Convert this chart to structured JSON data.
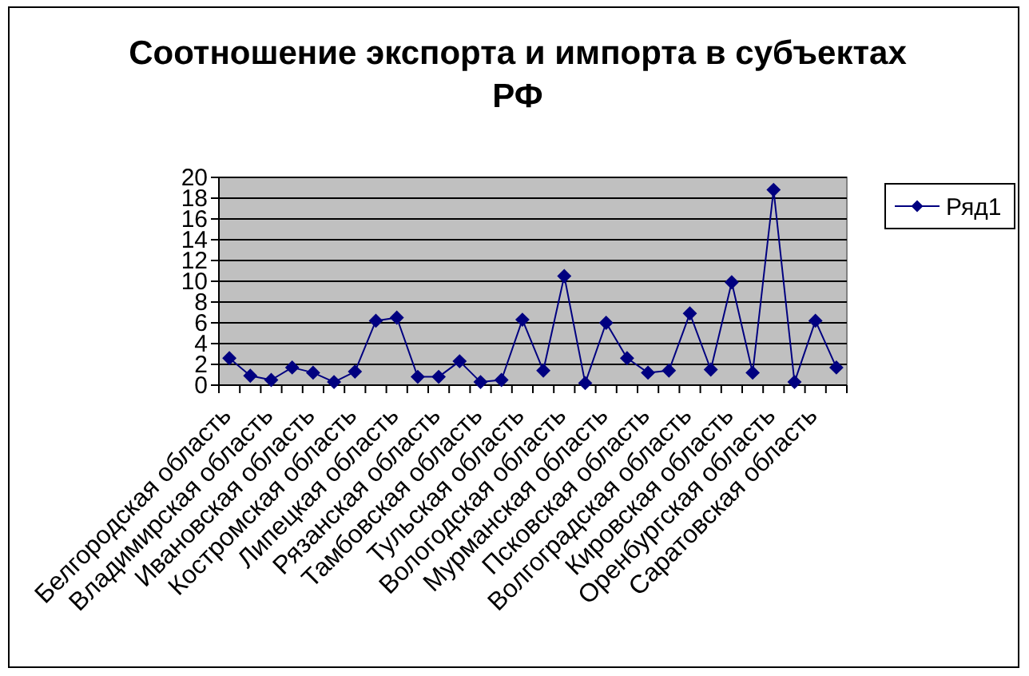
{
  "chart_data": {
    "type": "line",
    "title": "Соотношение экспорта и импорта в субъектах РФ",
    "categories": [
      "Белгородская область",
      null,
      "Владимирская область",
      null,
      "Ивановская область",
      null,
      "Костромская область",
      null,
      "Липецкая область",
      null,
      "Рязанская область",
      null,
      "Тамбовская область",
      null,
      "Тульская область",
      null,
      "Вологодская область",
      null,
      "Мурманская область",
      null,
      "Псковская область",
      null,
      "Волгоградская область",
      null,
      "Кировская область",
      null,
      "Оренбургская область",
      null,
      "Саратовская область",
      null
    ],
    "series": [
      {
        "name": "Ряд1",
        "color": "#000080",
        "values": [
          2.6,
          0.9,
          0.5,
          1.7,
          1.2,
          0.3,
          1.3,
          6.2,
          6.5,
          0.8,
          0.8,
          2.3,
          0.3,
          0.5,
          6.3,
          1.4,
          10.5,
          0.2,
          6.0,
          2.6,
          1.2,
          1.4,
          6.9,
          1.5,
          9.9,
          1.2,
          18.8,
          0.3,
          6.2,
          1.7
        ]
      }
    ],
    "ylim": [
      0,
      20
    ],
    "yticks": [
      0,
      2,
      4,
      6,
      8,
      10,
      12,
      14,
      16,
      18,
      20
    ],
    "grid": "y",
    "legend": "right",
    "marker": "diamond",
    "line_style": "solid"
  }
}
